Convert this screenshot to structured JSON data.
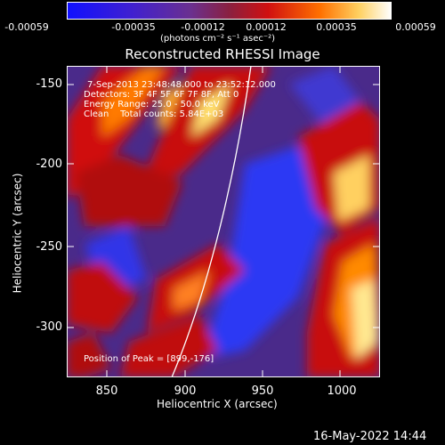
{
  "colorbar": {
    "ticks": [
      "-0.00059",
      "-0.00035",
      "-0.00012",
      "0.00012",
      "0.00035",
      "0.00059"
    ],
    "units": "(photons cm⁻² s⁻¹ asec⁻²)",
    "colors": [
      "#1a1aff",
      "#3a1ad0",
      "#5a2aa0",
      "#7a3a90",
      "#c01010",
      "#ff6a00",
      "#ffe070",
      "#ffffff"
    ]
  },
  "plot": {
    "title": "Reconstructed RHESSI Image",
    "info_lines": [
      "7-Sep-2013 23:48:48.000 to 23:52:12.000",
      "Detectors: 3F 4F 5F 6F 7F 8F, Att 0",
      "Energy Range: 25.0 - 50.0 keV",
      "Clean    Total counts: 5.84E+03"
    ],
    "peak_text": "Position of Peak = [899,-176]",
    "x_label": "Heliocentric X (arcsec)",
    "y_label": "Heliocentric Y (arcsec)",
    "x_ticks": [
      "850",
      "900",
      "950",
      "1000"
    ],
    "y_ticks": [
      "-150",
      "-200",
      "-250",
      "-300"
    ]
  },
  "footer": {
    "timestamp": "16-May-2022 14:44"
  }
}
